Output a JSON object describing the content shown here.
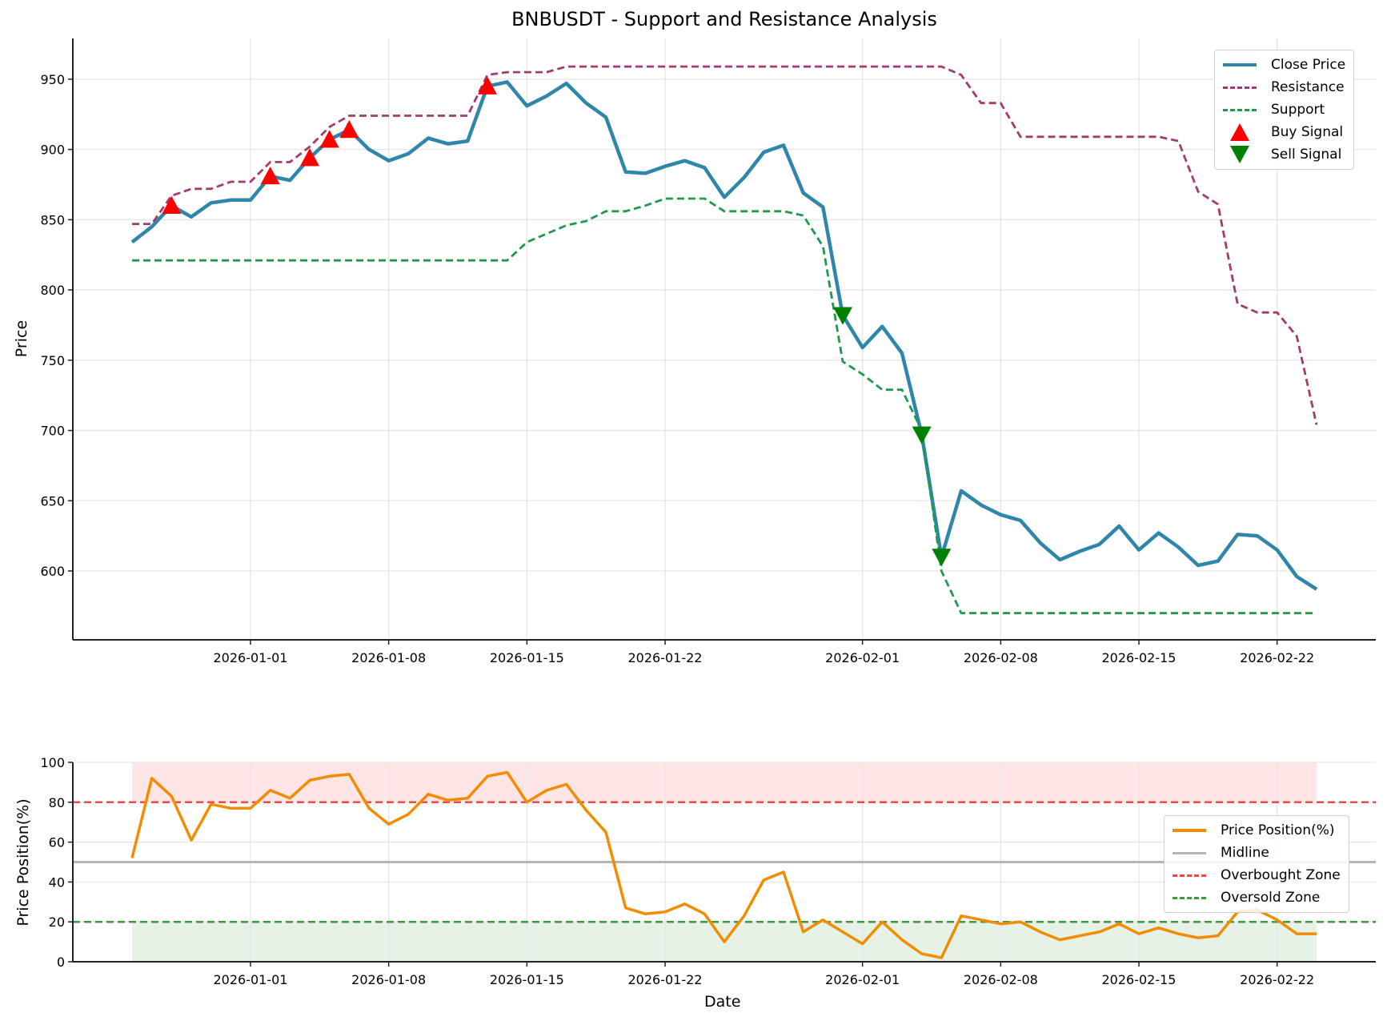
{
  "chart_data": [
    {
      "type": "line",
      "title": "BNBUSDT - Support and Resistance Analysis",
      "xlabel": "",
      "ylabel": "Price",
      "ylim": [
        551,
        979
      ],
      "yticks": [
        600,
        650,
        700,
        750,
        800,
        850,
        900,
        950
      ],
      "xticks": [
        "2026-01-01",
        "2026-01-08",
        "2026-01-15",
        "2026-01-22",
        "2026-02-01",
        "2026-02-08",
        "2026-02-15",
        "2026-02-22"
      ],
      "x_start": "2025-12-26",
      "grid": true,
      "legend_position": "top-right",
      "series": [
        {
          "name": "Close Price",
          "color": "#2E86AB",
          "style": "solid",
          "values": [
            834,
            845,
            860,
            852,
            862,
            864,
            864,
            881,
            878,
            894,
            907,
            914,
            900,
            892,
            897,
            908,
            904,
            906,
            945,
            948,
            931,
            938,
            947,
            933,
            923,
            884,
            883,
            888,
            892,
            887,
            866,
            880,
            898,
            903,
            869,
            859,
            782,
            759,
            774,
            755,
            697,
            610,
            657,
            647,
            640,
            636,
            620,
            608,
            614,
            619,
            632,
            615,
            627,
            617,
            604,
            607,
            626,
            625,
            615,
            596,
            587
          ]
        },
        {
          "name": "Resistance",
          "color": "#A23B72",
          "style": "dashed",
          "values": [
            847,
            847,
            867,
            872,
            872,
            877,
            877,
            891,
            891,
            902,
            916,
            924,
            924,
            924,
            924,
            924,
            924,
            924,
            953,
            955,
            955,
            955,
            959,
            959,
            959,
            959,
            959,
            959,
            959,
            959,
            959,
            959,
            959,
            959,
            959,
            959,
            959,
            959,
            959,
            959,
            959,
            959,
            953,
            933,
            933,
            909,
            909,
            909,
            909,
            909,
            909,
            909,
            909,
            906,
            870,
            861,
            790,
            784,
            784,
            767,
            704
          ]
        },
        {
          "name": "Support",
          "color": "#1E9A4C",
          "style": "dashed",
          "values": [
            821,
            821,
            821,
            821,
            821,
            821,
            821,
            821,
            821,
            821,
            821,
            821,
            821,
            821,
            821,
            821,
            821,
            821,
            821,
            821,
            834,
            840,
            846,
            849,
            856,
            856,
            860,
            865,
            865,
            865,
            856,
            856,
            856,
            856,
            853,
            831,
            749,
            740,
            729,
            729,
            700,
            600,
            570,
            570,
            570,
            570,
            570,
            570,
            570,
            570,
            570,
            570,
            570,
            570,
            570,
            570,
            570,
            570,
            570,
            570,
            570
          ]
        }
      ],
      "markers": [
        {
          "name": "Buy Signal",
          "color": "#FF0000",
          "shape": "triangle-up",
          "points": [
            {
              "date": "2025-12-28",
              "value": 860
            },
            {
              "date": "2026-01-02",
              "value": 881
            },
            {
              "date": "2026-01-04",
              "value": 894
            },
            {
              "date": "2026-01-05",
              "value": 907
            },
            {
              "date": "2026-01-06",
              "value": 914
            },
            {
              "date": "2026-01-13",
              "value": 945
            }
          ]
        },
        {
          "name": "Sell Signal",
          "color": "#008000",
          "shape": "triangle-down",
          "points": [
            {
              "date": "2026-01-31",
              "value": 782
            },
            {
              "date": "2026-02-04",
              "value": 697
            },
            {
              "date": "2026-02-05",
              "value": 610
            }
          ]
        }
      ]
    },
    {
      "type": "line",
      "title": "",
      "xlabel": "Date",
      "ylabel": "Price Position(%)",
      "ylim": [
        0,
        100
      ],
      "yticks": [
        0,
        20,
        40,
        60,
        80,
        100
      ],
      "xticks": [
        "2026-01-01",
        "2026-01-08",
        "2026-01-15",
        "2026-01-22",
        "2026-02-01",
        "2026-02-08",
        "2026-02-15",
        "2026-02-22"
      ],
      "x_start": "2025-12-26",
      "grid": true,
      "legend_position": "center-right",
      "series": [
        {
          "name": "Price Position(%)",
          "color": "#F28C00",
          "style": "solid",
          "values": [
            52,
            92,
            83,
            61,
            79,
            77,
            77,
            86,
            82,
            91,
            93,
            94,
            77,
            69,
            74,
            84,
            81,
            82,
            93,
            95,
            80,
            86,
            89,
            76,
            65,
            27,
            24,
            25,
            29,
            24,
            10,
            23,
            41,
            45,
            15,
            21,
            15,
            9,
            20,
            11,
            4,
            2,
            23,
            21,
            19,
            20,
            15,
            11,
            13,
            15,
            19,
            14,
            17,
            14,
            12,
            13,
            25,
            26,
            21,
            14,
            14
          ]
        }
      ],
      "reference_lines": [
        {
          "name": "Midline",
          "value": 50,
          "color": "#B5B5B5",
          "style": "solid"
        },
        {
          "name": "Overbought Zone",
          "value": 80,
          "color": "#FF4444",
          "style": "dashed"
        },
        {
          "name": "Oversold Zone",
          "value": 20,
          "color": "#3A9E3A",
          "style": "dashed"
        }
      ],
      "zones": [
        {
          "from": 80,
          "to": 100,
          "color": "#FF9999"
        },
        {
          "from": 0,
          "to": 20,
          "color": "#99CC99"
        }
      ]
    }
  ]
}
